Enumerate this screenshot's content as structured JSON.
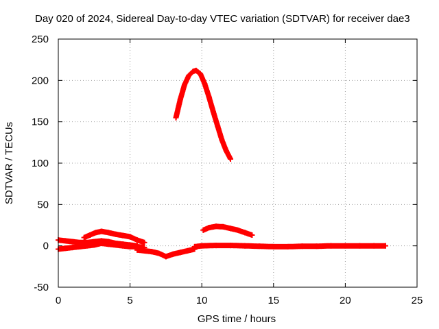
{
  "chart_data": {
    "type": "scatter",
    "title": "Day 020 of 2024, Sidereal Day-to-day VTEC variation (SDTVAR) for receiver dae3",
    "xlabel": "GPS time / hours",
    "ylabel": "SDTVAR / TECUs",
    "xlim": [
      0,
      25
    ],
    "ylim": [
      -50,
      250
    ],
    "xticks": [
      0,
      5,
      10,
      15,
      20,
      25
    ],
    "yticks": [
      -50,
      0,
      50,
      100,
      150,
      200,
      250
    ],
    "grid": true,
    "marker": "+",
    "color": "#ff0000",
    "series": [
      {
        "name": "arc-peak",
        "x": [
          8.2,
          8.5,
          8.8,
          9.1,
          9.4,
          9.6,
          9.9,
          10.2,
          10.5,
          10.8,
          11.1,
          11.4,
          11.7,
          12.0
        ],
        "y": [
          155,
          177,
          195,
          206,
          211,
          212,
          208,
          196,
          180,
          162,
          145,
          128,
          115,
          105
        ]
      },
      {
        "name": "arc-mid",
        "x": [
          10.1,
          10.5,
          11.0,
          11.5,
          12.0,
          12.5,
          13.0,
          13.5
        ],
        "y": [
          19,
          22,
          23.5,
          23,
          21,
          19,
          16,
          13
        ]
      },
      {
        "name": "arc-early-hump",
        "x": [
          1.8,
          2.2,
          2.6,
          3.0,
          3.5,
          4.0,
          4.5,
          5.0,
          5.5,
          6.0
        ],
        "y": [
          10,
          13,
          16,
          17.5,
          16,
          14,
          12.5,
          11,
          7,
          4
        ]
      },
      {
        "name": "arc-early-1",
        "x": [
          0,
          0.5,
          1.0,
          1.5,
          2.0,
          2.5,
          3.0,
          3.5,
          4.0,
          4.5,
          5.0,
          5.5
        ],
        "y": [
          7,
          6,
          5,
          4,
          4,
          5,
          6,
          5,
          3,
          2,
          1,
          0
        ]
      },
      {
        "name": "arc-early-2",
        "x": [
          0,
          0.5,
          1.0,
          1.5,
          2.0,
          2.5,
          3.0,
          3.5,
          4.0,
          4.5,
          5.0,
          5.5,
          6.0
        ],
        "y": [
          -4,
          -3,
          -2,
          -1,
          0,
          1,
          3,
          2,
          1,
          0,
          -1,
          -1,
          -2
        ]
      },
      {
        "name": "arc-dip",
        "x": [
          5.5,
          6.0,
          6.5,
          7.0,
          7.5,
          8.0,
          8.5,
          9.0,
          9.5
        ],
        "y": [
          -5,
          -6,
          -7,
          -9,
          -13,
          -10,
          -8,
          -6,
          -4
        ]
      },
      {
        "name": "arc-flat",
        "x": [
          9.5,
          10.0,
          11.0,
          12.0,
          13.0,
          14.0,
          15.0,
          16.0,
          17.0,
          18.0,
          19.0,
          20.0,
          21.0,
          22.0,
          22.8
        ],
        "y": [
          -1,
          0,
          0.5,
          0.5,
          0,
          -0.5,
          -1,
          -1,
          -0.5,
          -0.5,
          0,
          0,
          0,
          0,
          0
        ]
      }
    ]
  }
}
